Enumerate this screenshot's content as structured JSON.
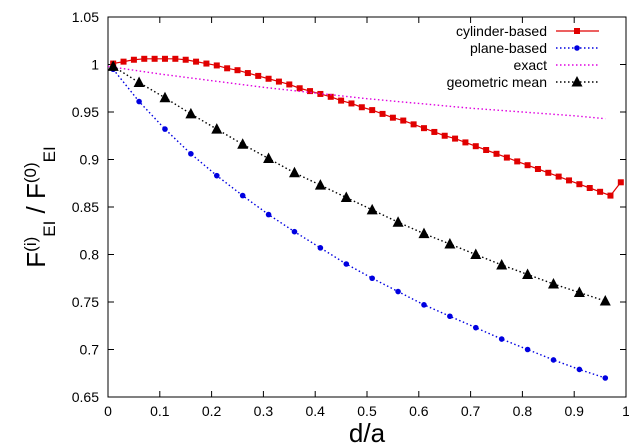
{
  "chart_data": {
    "type": "line",
    "xlabel": "d/a",
    "ylabel": {
      "parts": [
        {
          "text": "F",
          "style": "normal"
        },
        {
          "text": "(i)",
          "style": "sup"
        },
        {
          "text": "EI",
          "style": "sub"
        },
        {
          "text": " / F",
          "style": "normal"
        },
        {
          "text": "(0)",
          "style": "sup"
        },
        {
          "text": "EI",
          "style": "sub"
        }
      ]
    },
    "xlim": [
      0,
      1
    ],
    "ylim": [
      0.65,
      1.05
    ],
    "x_ticks": [
      "0",
      "0.1",
      "0.2",
      "0.3",
      "0.4",
      "0.5",
      "0.6",
      "0.7",
      "0.8",
      "0.9",
      "1"
    ],
    "x_tick_values": [
      0,
      0.1,
      0.2,
      0.3,
      0.4,
      0.5,
      0.6,
      0.7,
      0.8,
      0.9,
      1.0
    ],
    "y_ticks": [
      "0.65",
      "0.7",
      "0.75",
      "0.8",
      "0.85",
      "0.9",
      "0.95",
      "1",
      "1.05"
    ],
    "y_tick_values": [
      0.65,
      0.7,
      0.75,
      0.8,
      0.85,
      0.9,
      0.95,
      1.0,
      1.05
    ],
    "legend_position": "top-right",
    "series": [
      {
        "name": "cylinder-based",
        "color": "#e00000",
        "marker": "square",
        "line": "solid",
        "x": [
          0.01,
          0.03,
          0.05,
          0.07,
          0.09,
          0.11,
          0.13,
          0.15,
          0.17,
          0.19,
          0.21,
          0.23,
          0.25,
          0.27,
          0.29,
          0.31,
          0.33,
          0.35,
          0.37,
          0.39,
          0.41,
          0.43,
          0.45,
          0.47,
          0.49,
          0.51,
          0.53,
          0.55,
          0.57,
          0.59,
          0.61,
          0.63,
          0.65,
          0.67,
          0.69,
          0.71,
          0.73,
          0.75,
          0.77,
          0.79,
          0.81,
          0.83,
          0.85,
          0.87,
          0.89,
          0.91,
          0.93,
          0.95,
          0.97,
          0.99
        ],
        "y": [
          1.001,
          1.003,
          1.005,
          1.006,
          1.006,
          1.006,
          1.006,
          1.005,
          1.003,
          1.001,
          0.999,
          0.996,
          0.994,
          0.991,
          0.988,
          0.985,
          0.982,
          0.979,
          0.975,
          0.972,
          0.969,
          0.966,
          0.962,
          0.959,
          0.955,
          0.952,
          0.948,
          0.944,
          0.941,
          0.937,
          0.933,
          0.929,
          0.925,
          0.922,
          0.918,
          0.914,
          0.91,
          0.906,
          0.902,
          0.898,
          0.894,
          0.89,
          0.886,
          0.882,
          0.878,
          0.874,
          0.87,
          0.866,
          0.862,
          0.876
        ]
      },
      {
        "name": "plane-based",
        "color": "#0000e0",
        "marker": "circle",
        "line": "dotted",
        "x": [
          0.01,
          0.06,
          0.11,
          0.16,
          0.21,
          0.26,
          0.31,
          0.36,
          0.41,
          0.46,
          0.51,
          0.56,
          0.61,
          0.66,
          0.71,
          0.76,
          0.81,
          0.86,
          0.91,
          0.96
        ],
        "y": [
          0.995,
          0.961,
          0.932,
          0.906,
          0.883,
          0.862,
          0.842,
          0.824,
          0.807,
          0.79,
          0.775,
          0.761,
          0.747,
          0.735,
          0.723,
          0.711,
          0.7,
          0.689,
          0.679,
          0.67
        ]
      },
      {
        "name": "exact",
        "color": "#e000e0",
        "marker": "none",
        "line": "dotted",
        "x": [
          0.0,
          0.1,
          0.2,
          0.3,
          0.4,
          0.5,
          0.6,
          0.7,
          0.8,
          0.9,
          0.96
        ],
        "y": [
          0.998,
          0.99,
          0.983,
          0.976,
          0.97,
          0.964,
          0.959,
          0.954,
          0.95,
          0.946,
          0.943
        ]
      },
      {
        "name": "geometric mean",
        "color": "#000000",
        "marker": "triangle",
        "line": "dotted",
        "x": [
          0.01,
          0.06,
          0.11,
          0.16,
          0.21,
          0.26,
          0.31,
          0.36,
          0.41,
          0.46,
          0.51,
          0.56,
          0.61,
          0.66,
          0.71,
          0.76,
          0.81,
          0.86,
          0.91,
          0.96
        ],
        "y": [
          0.998,
          0.981,
          0.965,
          0.948,
          0.932,
          0.916,
          0.901,
          0.886,
          0.873,
          0.86,
          0.847,
          0.834,
          0.822,
          0.811,
          0.8,
          0.789,
          0.779,
          0.769,
          0.76,
          0.751
        ]
      }
    ]
  }
}
